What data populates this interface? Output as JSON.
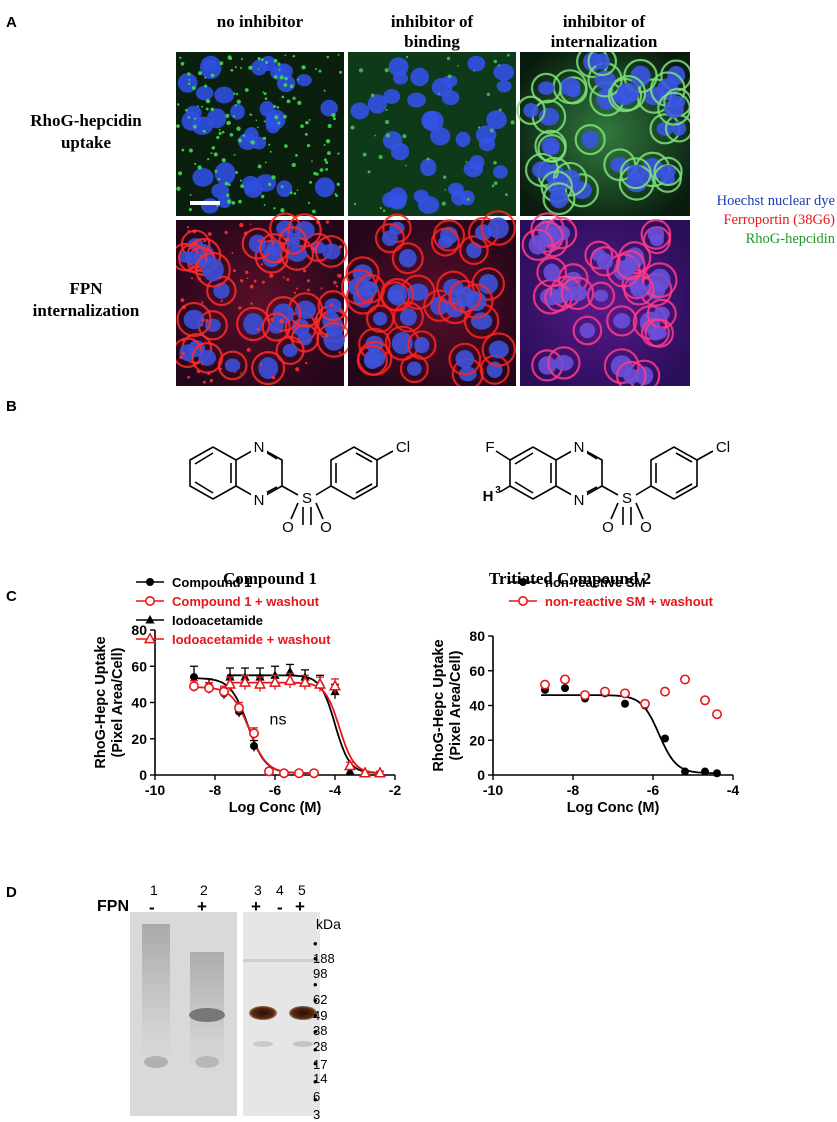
{
  "panelA": {
    "letter": "A",
    "columns": [
      "no inhibitor",
      "inhibitor of binding",
      "inhibitor of internalization"
    ],
    "column_lines": [
      [
        "no inhibitor"
      ],
      [
        "inhibitor of",
        "binding"
      ],
      [
        "inhibitor of",
        "internalization"
      ]
    ],
    "rows": [
      [
        "RhoG-hepcidin",
        "uptake"
      ],
      [
        "FPN",
        "internalization"
      ]
    ],
    "legend": [
      {
        "text": "Hoechst nuclear dye",
        "color": "#1f3bb3"
      },
      {
        "text": "Ferroportin (38G6)",
        "color": "#e8151b"
      },
      {
        "text": "RhoG-hepcidin",
        "color": "#1f9a2a"
      }
    ]
  },
  "panelB": {
    "letter": "B",
    "compound1_label": "Compound 1",
    "compound2_label": "Tritiated Compound 2",
    "atom_labels": {
      "N": "N",
      "S": "S",
      "O": "O",
      "Cl": "Cl",
      "F": "F",
      "H3": "H",
      "H3_sup": "3"
    }
  },
  "panelC": {
    "letter": "C",
    "chart_data": [
      {
        "type": "scatter",
        "xlabel": "Log Conc (M)",
        "ylabel": "RhoG-Hepc Uptake (Pixel Area/Cell)",
        "ylabel_lines": [
          "RhoG-Hepc Uptake",
          "(Pixel Area/Cell)"
        ],
        "xlim": [
          -10,
          -2
        ],
        "ylim": [
          0,
          80
        ],
        "xticks": [
          -10,
          -8,
          -6,
          -4,
          -2
        ],
        "yticks": [
          0,
          20,
          40,
          60,
          80
        ],
        "legend_placement": "top-left",
        "annotation": "ns",
        "series": [
          {
            "name": "Compound 1",
            "color": "#000000",
            "marker": "filled-circle",
            "x": [
              -8.7,
              -8.2,
              -7.7,
              -7.2,
              -6.7,
              -6.2,
              -5.7,
              -5.2,
              -4.7
            ],
            "y": [
              54,
              49,
              45,
              35,
              16,
              2,
              1,
              1,
              1
            ],
            "err": [
              6,
              4,
              3,
              3,
              3,
              1,
              1,
              1,
              1
            ]
          },
          {
            "name": "Compound 1 + washout",
            "color": "#e8151b",
            "marker": "open-circle",
            "x": [
              -8.7,
              -8.2,
              -7.7,
              -7.2,
              -6.7,
              -6.2,
              -5.7,
              -5.2,
              -4.7
            ],
            "y": [
              49,
              48,
              46,
              37,
              23,
              2,
              1,
              1,
              1
            ],
            "err": [
              3,
              3,
              3,
              3,
              3,
              1,
              1,
              1,
              1
            ]
          },
          {
            "name": "Iodoacetamide",
            "color": "#000000",
            "marker": "filled-triangle",
            "x": [
              -7.5,
              -7.0,
              -6.5,
              -6.0,
              -5.5,
              -5.0,
              -4.5,
              -4.0,
              -3.5,
              -3.0,
              -2.5
            ],
            "y": [
              54,
              54,
              54,
              55,
              57,
              54,
              51,
              46,
              2,
              1,
              1
            ],
            "err": [
              5,
              5,
              5,
              5,
              4,
              4,
              4,
              4,
              1,
              1,
              1
            ]
          },
          {
            "name": "Iodoacetamide + washout",
            "color": "#e8151b",
            "marker": "open-triangle",
            "x": [
              -7.5,
              -7.0,
              -6.5,
              -6.0,
              -5.5,
              -5.0,
              -4.5,
              -4.0,
              -3.5,
              -3.0,
              -2.5
            ],
            "y": [
              50,
              51,
              50,
              51,
              52,
              51,
              50,
              49,
              5,
              1,
              1
            ],
            "err": [
              4,
              4,
              4,
              4,
              4,
              4,
              4,
              4,
              2,
              1,
              1
            ]
          }
        ],
        "fits": [
          {
            "color": "#000000",
            "top": 53.5,
            "bottom": 1,
            "log_ic50": -6.9,
            "hill": 1.5
          },
          {
            "color": "#e8151b",
            "top": 48.5,
            "bottom": 1,
            "log_ic50": -6.85,
            "hill": 1.5
          },
          {
            "color": "#000000",
            "top": 55,
            "bottom": 1,
            "log_ic50": -4.0,
            "hill": 1.8
          },
          {
            "color": "#e8151b",
            "top": 51,
            "bottom": 1,
            "log_ic50": -3.85,
            "hill": 1.8
          }
        ]
      },
      {
        "type": "scatter",
        "xlabel": "Log Conc (M)",
        "ylabel": "RhoG-Hepc Uptake (Pixel Area/Cell)",
        "ylabel_lines": [
          "RhoG-Hepc Uptake",
          "(Pixel Area/Cell)"
        ],
        "xlim": [
          -10,
          -4
        ],
        "ylim": [
          0,
          80
        ],
        "xticks": [
          -10,
          -8,
          -6,
          -4
        ],
        "yticks": [
          0,
          20,
          40,
          60,
          80
        ],
        "legend_placement": "top",
        "series": [
          {
            "name": "non-reactive SM",
            "color": "#000000",
            "marker": "filled-circle",
            "x": [
              -8.7,
              -8.2,
              -7.7,
              -7.2,
              -6.7,
              -6.2,
              -5.7,
              -5.2,
              -4.7,
              -4.4
            ],
            "y": [
              49,
              50,
              44,
              47,
              41,
              40,
              21,
              2,
              2,
              1
            ]
          },
          {
            "name": "non-reactive SM + washout",
            "color": "#e8151b",
            "marker": "open-circle",
            "x": [
              -8.7,
              -8.2,
              -7.7,
              -7.2,
              -6.7,
              -6.2,
              -5.7,
              -5.2,
              -4.7,
              -4.4
            ],
            "y": [
              52,
              55,
              46,
              48,
              47,
              41,
              48,
              55,
              43,
              35
            ]
          }
        ],
        "fits": [
          {
            "color": "#000000",
            "top": 46,
            "bottom": 1,
            "log_ic50": -5.85,
            "hill": 2.0
          }
        ]
      }
    ]
  },
  "panelD": {
    "letter": "D",
    "row_label": "FPN",
    "lanes": [
      {
        "number": "1",
        "sign": "-"
      },
      {
        "number": "2",
        "sign": "+"
      },
      {
        "number": "3",
        "sign": "+"
      },
      {
        "number": "4",
        "sign": "-"
      },
      {
        "number": "5",
        "sign": "+"
      }
    ],
    "marker_unit": "kDa",
    "markers": [
      "188",
      "98",
      "62",
      "49",
      "38",
      "28",
      "17",
      "14",
      "6",
      "3"
    ]
  }
}
